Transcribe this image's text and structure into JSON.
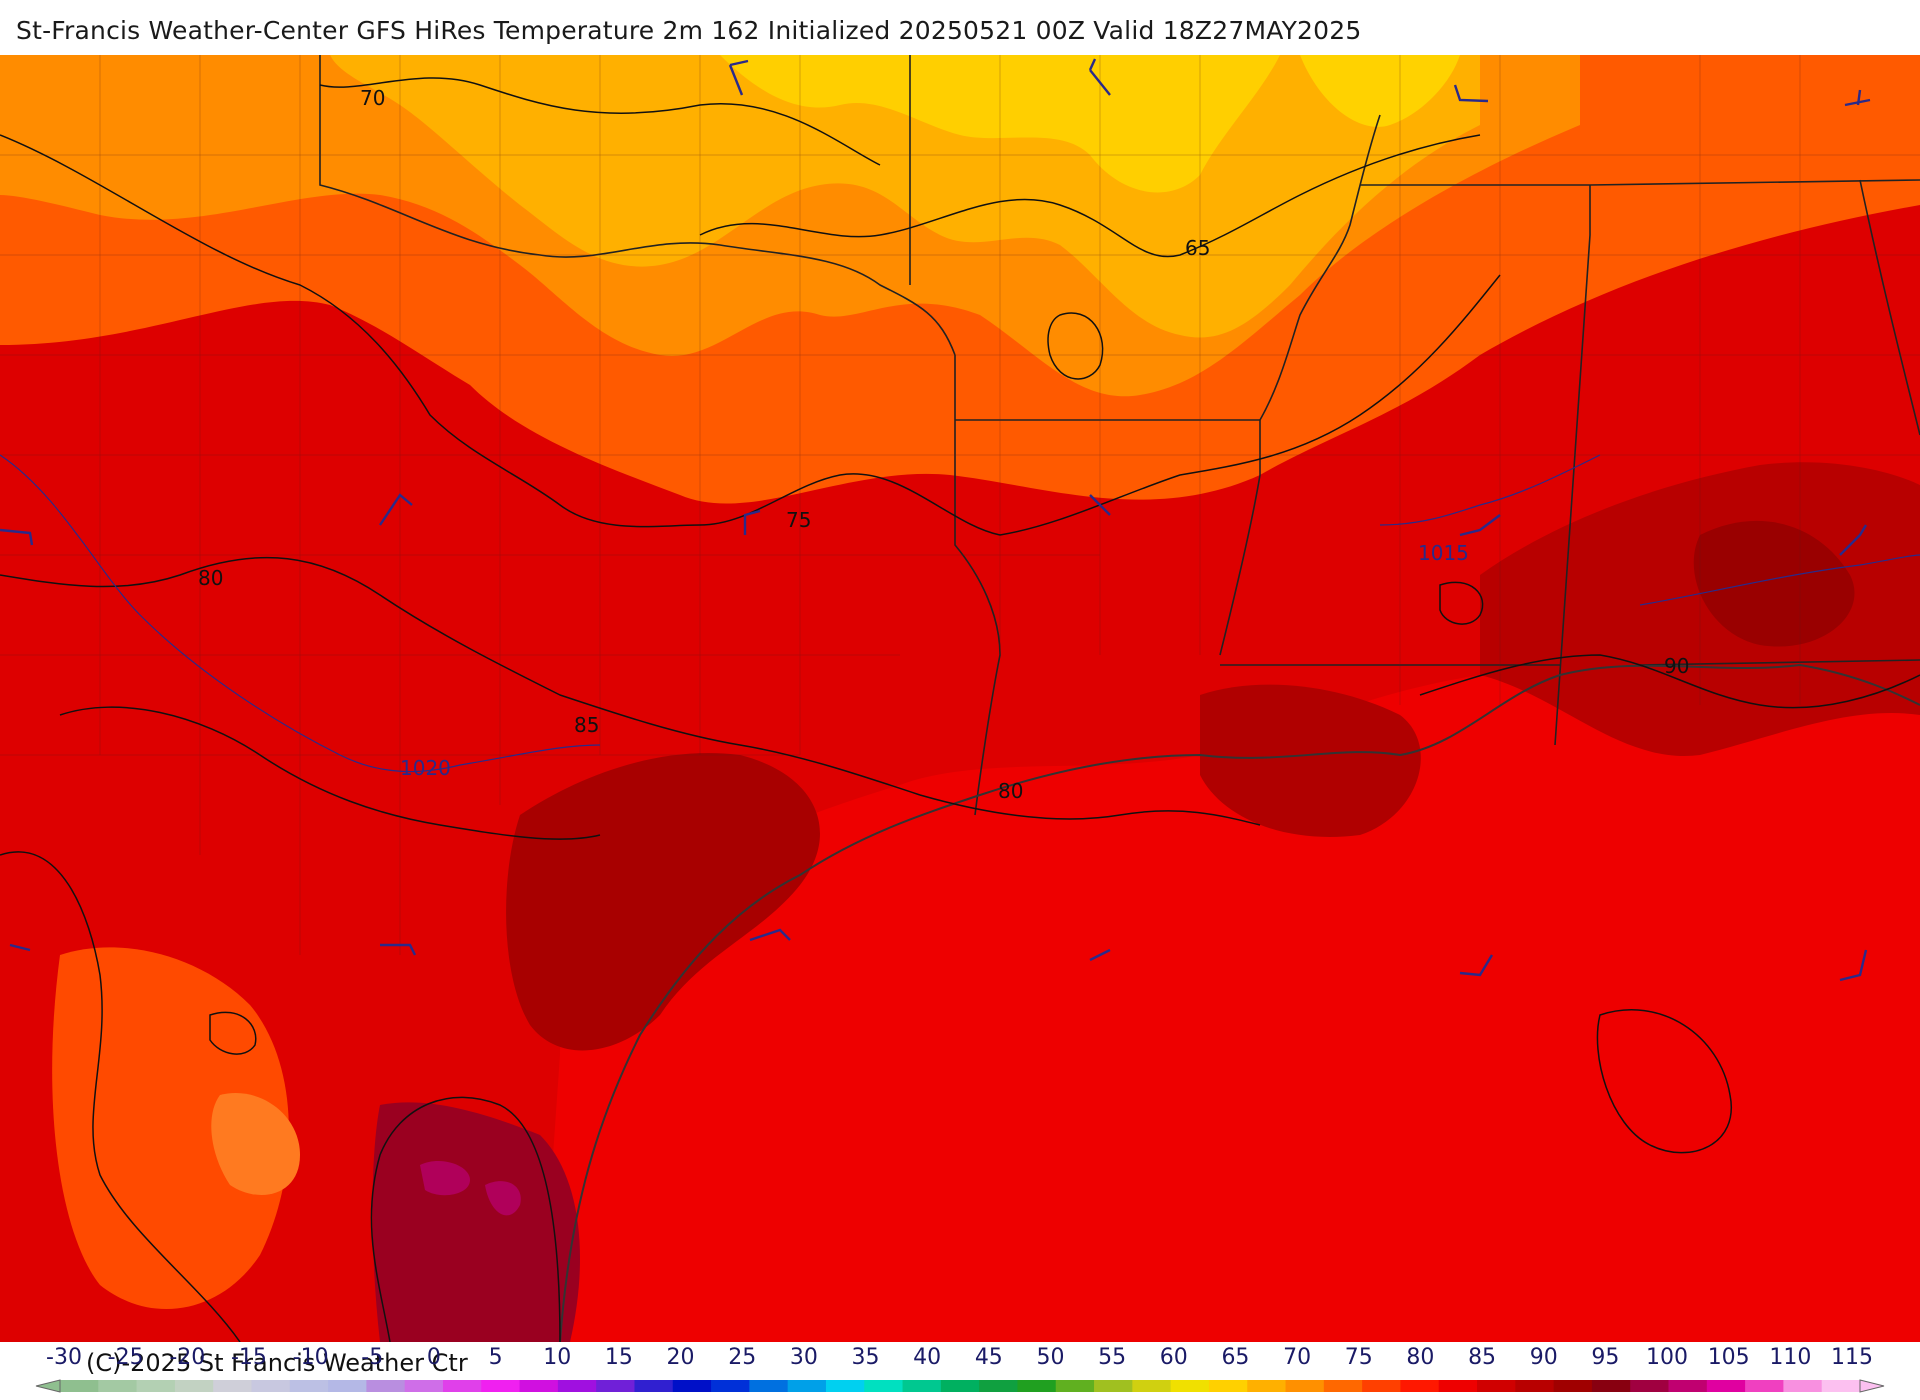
{
  "title": "St-Francis Weather-Center GFS HiRes Temperature 2m  162 Initialized 20250521 00Z Valid 18Z27MAY2025",
  "copyright": "(C)-2025 St Francis Weather Ctr",
  "isotherm_labels": [
    "70",
    "65",
    "75",
    "80",
    "85",
    "80",
    "90"
  ],
  "isobar_labels": [
    "1015",
    "1020"
  ],
  "colorbar": {
    "ticks": [
      "-30",
      "-25",
      "-20",
      "-15",
      "-10",
      "-5",
      "0",
      "5",
      "10",
      "15",
      "20",
      "25",
      "30",
      "35",
      "40",
      "45",
      "50",
      "55",
      "60",
      "65",
      "70",
      "75",
      "80",
      "85",
      "90",
      "95",
      "100",
      "105",
      "110",
      "115"
    ],
    "colors": [
      "#8fbf8f",
      "#a3c9a3",
      "#b3d0b3",
      "#c2d2c2",
      "#cfcfd9",
      "#c8c8e0",
      "#bcc0e4",
      "#b4b8e6",
      "#b98ee0",
      "#cf6ee8",
      "#e040ea",
      "#f020f0",
      "#d010e0",
      "#a010e0",
      "#7020d8",
      "#3020d0",
      "#0010c8",
      "#0030d8",
      "#0070e0",
      "#00a0e8",
      "#00d0f0",
      "#00e0c0",
      "#00c890",
      "#00b060",
      "#10a040",
      "#20a020",
      "#60b020",
      "#a0c020",
      "#d0d010",
      "#f0e000",
      "#ffd000",
      "#ffb000",
      "#ff9000",
      "#ff6800",
      "#ff4000",
      "#ff1800",
      "#ee0000",
      "#d00000",
      "#b80000",
      "#a00000",
      "#880010",
      "#a00040",
      "#c00070",
      "#e000a0",
      "#f040c0",
      "#f890e0",
      "#fcc0f0"
    ]
  }
}
